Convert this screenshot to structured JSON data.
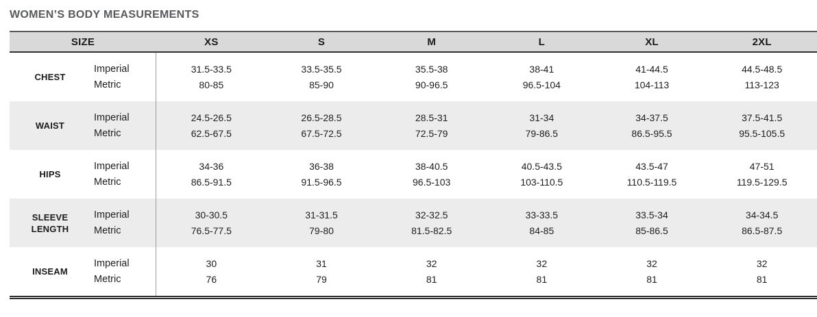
{
  "title": "WOMEN’S BODY MEASUREMENTS",
  "table": {
    "size_header": "SIZE",
    "sizes": [
      "XS",
      "S",
      "M",
      "L",
      "XL",
      "2XL"
    ],
    "unit_row_labels": [
      "Imperial",
      "Metric"
    ],
    "rows": [
      {
        "label": "CHEST",
        "imperial": [
          "31.5-33.5",
          "33.5-35.5",
          "35.5-38",
          "38-41",
          "41-44.5",
          "44.5-48.5"
        ],
        "metric": [
          "80-85",
          "85-90",
          "90-96.5",
          "96.5-104",
          "104-113",
          "113-123"
        ]
      },
      {
        "label": "WAIST",
        "imperial": [
          "24.5-26.5",
          "26.5-28.5",
          "28.5-31",
          "31-34",
          "34-37.5",
          "37.5-41.5"
        ],
        "metric": [
          "62.5-67.5",
          "67.5-72.5",
          "72.5-79",
          "79-86.5",
          "86.5-95.5",
          "95.5-105.5"
        ]
      },
      {
        "label": "HIPS",
        "imperial": [
          "34-36",
          "36-38",
          "38-40.5",
          "40.5-43.5",
          "43.5-47",
          "47-51"
        ],
        "metric": [
          "86.5-91.5",
          "91.5-96.5",
          "96.5-103",
          "103-110.5",
          "110.5-119.5",
          "119.5-129.5"
        ]
      },
      {
        "label": "SLEEVE LENGTH",
        "imperial": [
          "30-30.5",
          "31-31.5",
          "32-32.5",
          "33-33.5",
          "33.5-34",
          "34-34.5"
        ],
        "metric": [
          "76.5-77.5",
          "79-80",
          "81.5-82.5",
          "84-85",
          "85-86.5",
          "86.5-87.5"
        ]
      },
      {
        "label": "INSEAM",
        "imperial": [
          "30",
          "31",
          "32",
          "32",
          "32",
          "32"
        ],
        "metric": [
          "76",
          "79",
          "81",
          "81",
          "81",
          "81"
        ]
      }
    ]
  },
  "colors": {
    "title_text": "#58595b",
    "header_bg": "#d9d9d9",
    "alt_row_bg": "#ececec",
    "border_dark": "#303030",
    "border_top": "#595959",
    "divider": "#9a9a9a",
    "text": "#1d1d1d"
  }
}
